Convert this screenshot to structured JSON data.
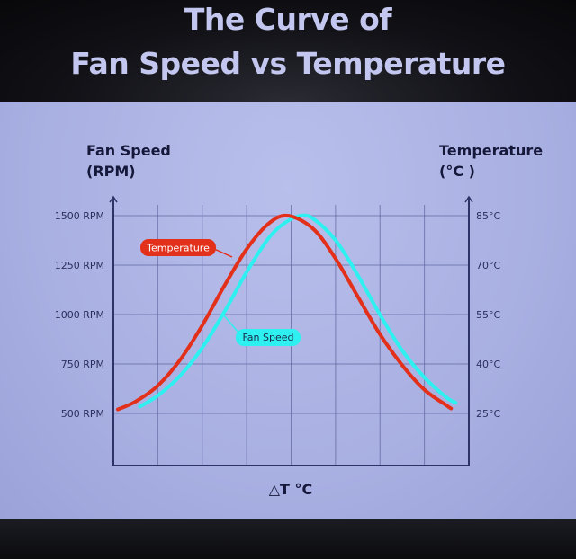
{
  "title_line1": "The Curve of",
  "title_line2": "Fan Speed vs Temperature",
  "chart_data": {
    "type": "line",
    "title": "The Curve of Fan Speed vs Temperature",
    "xlabel": "△T °C",
    "ylabel": "Fan Speed (RPM)",
    "ylabel_left_lines": [
      "Fan Speed",
      "(RPM)"
    ],
    "ylabel_right": "Temperature (°C)",
    "ylabel_right_lines": [
      "Temperature",
      "(°C )"
    ],
    "x_range": [
      0,
      8
    ],
    "ylim": [
      500,
      1500
    ],
    "yticks_left": [
      "1500 RPM",
      "1250 RPM",
      "1000 RPM",
      "750 RPM",
      "500 RPM"
    ],
    "yticks_left_values": [
      1500,
      1250,
      1000,
      750,
      500
    ],
    "yticks_right": [
      "85°C",
      "70°C",
      "55°C",
      "40°C",
      "25°C"
    ],
    "grid": true,
    "series": [
      {
        "name": "Temperature",
        "color": "#e3301b",
        "x": [
          0.1,
          0.5,
          1,
          1.5,
          2,
          2.5,
          3,
          3.5,
          3.93,
          4.5,
          5,
          5.5,
          6,
          6.5,
          7,
          7.5,
          7.6
        ],
        "y": [
          520,
          560,
          640,
          770,
          945,
          1146,
          1331,
          1461,
          1500,
          1433,
          1283,
          1091,
          900,
          744,
          620,
          540,
          525
        ]
      },
      {
        "name": "Fan Speed",
        "color": "#2ef0f0",
        "x": [
          0.6,
          1,
          1.5,
          2,
          2.5,
          3,
          3.5,
          3.9,
          4.23,
          4.5,
          5,
          5.5,
          6,
          6.5,
          7,
          7.5,
          7.7
        ],
        "y": [
          535,
          590,
          690,
          832,
          1014,
          1215,
          1388,
          1470,
          1500,
          1484,
          1376,
          1199,
          999,
          818,
          682,
          580,
          555
        ]
      }
    ],
    "annotations": [
      "Temperature",
      "Fan Speed"
    ]
  }
}
